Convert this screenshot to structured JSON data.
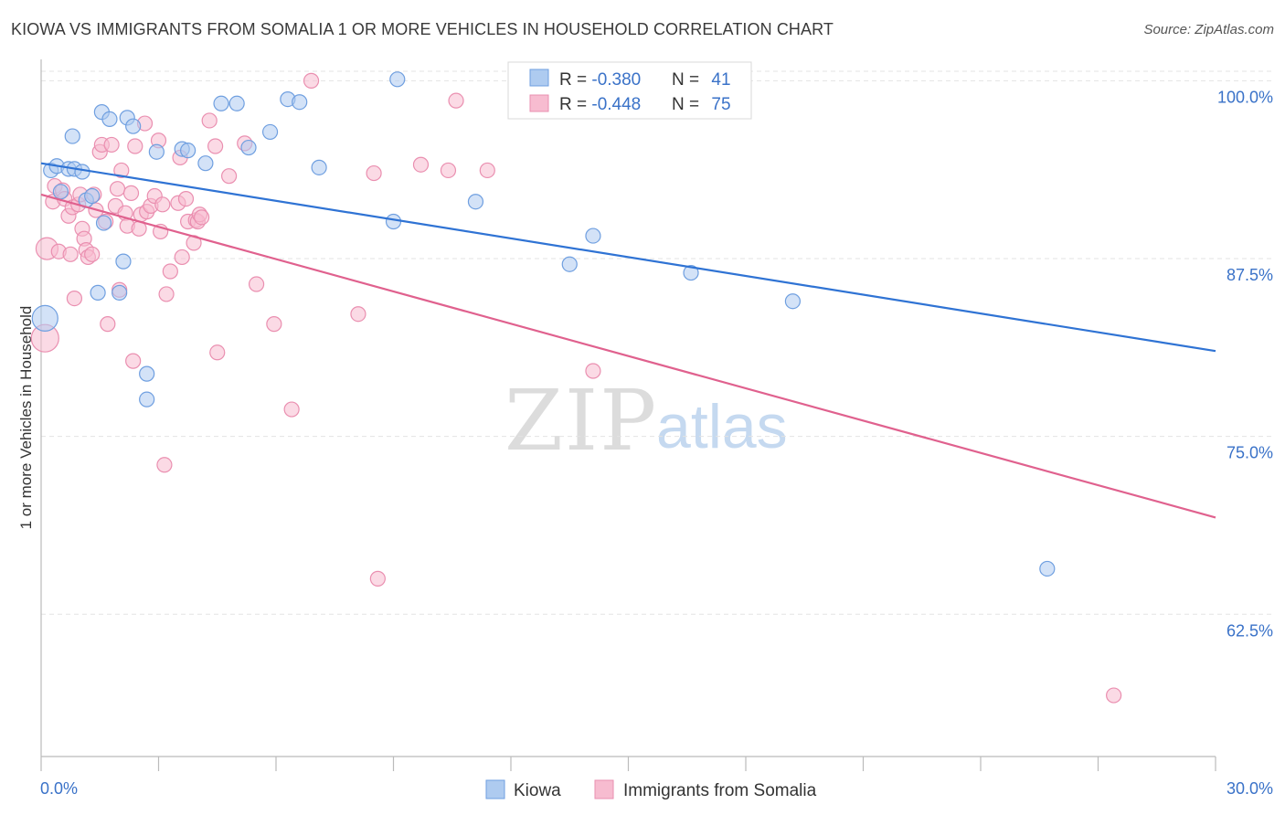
{
  "title": "KIOWA VS IMMIGRANTS FROM SOMALIA 1 OR MORE VEHICLES IN HOUSEHOLD CORRELATION CHART",
  "source": "Source: ZipAtlas.com",
  "watermark": {
    "zip": "ZIP",
    "atlas": "atlas"
  },
  "colors": {
    "kiowa_fill": "#aecbf0",
    "kiowa_stroke": "#6f9fe0",
    "kiowa_line": "#2f73d4",
    "somalia_fill": "#f7bcd0",
    "somalia_stroke": "#ea8fb0",
    "somalia_line": "#e0618e",
    "value_text": "#3a72c8",
    "grid": "#e3e3e3",
    "axis": "#bbbbbb"
  },
  "stats_box": {
    "rows": [
      {
        "r_label": "R = ",
        "r_value": "-0.380",
        "n_label": "N = ",
        "n_value": "41"
      },
      {
        "r_label": "R = ",
        "r_value": "-0.448",
        "n_label": "N = ",
        "n_value": "75"
      }
    ]
  },
  "chart_data": {
    "type": "scatter",
    "title": "KIOWA VS IMMIGRANTS FROM SOMALIA 1 OR MORE VEHICLES IN HOUSEHOLD CORRELATION CHART",
    "xlabel": "",
    "ylabel": "1 or more Vehicles in Household",
    "xlim": [
      0,
      30
    ],
    "ylim": [
      52.5,
      101.5
    ],
    "x_tick_labels": [
      "0.0%",
      "30.0%"
    ],
    "y_ticks": [
      62.5,
      75.0,
      87.5,
      100.0
    ],
    "y_tick_labels": [
      "62.5%",
      "75.0%",
      "87.5%",
      "100.0%"
    ],
    "grid": true,
    "legend_position": "bottom-center",
    "series": [
      {
        "name": "Kiowa",
        "color": "#6f9fe0",
        "regression": {
          "x": [
            0,
            30
          ],
          "y": [
            94.2,
            81.0
          ]
        },
        "points": [
          {
            "x": 0.1,
            "y": 83.3,
            "r": 14
          },
          {
            "x": 0.25,
            "y": 93.7
          },
          {
            "x": 0.4,
            "y": 94.0
          },
          {
            "x": 0.5,
            "y": 92.2
          },
          {
            "x": 0.7,
            "y": 93.8
          },
          {
            "x": 0.8,
            "y": 96.1
          },
          {
            "x": 0.85,
            "y": 93.8
          },
          {
            "x": 1.05,
            "y": 93.6
          },
          {
            "x": 1.15,
            "y": 91.6
          },
          {
            "x": 1.3,
            "y": 91.9
          },
          {
            "x": 1.45,
            "y": 85.1
          },
          {
            "x": 1.55,
            "y": 97.8
          },
          {
            "x": 1.6,
            "y": 90.0
          },
          {
            "x": 1.75,
            "y": 97.3
          },
          {
            "x": 2.0,
            "y": 85.1
          },
          {
            "x": 2.1,
            "y": 87.3
          },
          {
            "x": 2.2,
            "y": 97.4
          },
          {
            "x": 2.35,
            "y": 96.8
          },
          {
            "x": 2.7,
            "y": 79.4
          },
          {
            "x": 2.7,
            "y": 77.6
          },
          {
            "x": 2.95,
            "y": 95.0
          },
          {
            "x": 3.6,
            "y": 95.2
          },
          {
            "x": 3.75,
            "y": 95.1
          },
          {
            "x": 4.2,
            "y": 94.2
          },
          {
            "x": 4.6,
            "y": 98.4
          },
          {
            "x": 5.0,
            "y": 98.4
          },
          {
            "x": 5.3,
            "y": 95.3
          },
          {
            "x": 5.85,
            "y": 96.4
          },
          {
            "x": 6.3,
            "y": 98.7
          },
          {
            "x": 6.6,
            "y": 98.5
          },
          {
            "x": 7.1,
            "y": 93.9
          },
          {
            "x": 9.0,
            "y": 90.1
          },
          {
            "x": 9.1,
            "y": 100.1
          },
          {
            "x": 11.1,
            "y": 91.5
          },
          {
            "x": 13.5,
            "y": 87.1
          },
          {
            "x": 14.1,
            "y": 89.1
          },
          {
            "x": 16.2,
            "y": 100.2
          },
          {
            "x": 16.6,
            "y": 86.5
          },
          {
            "x": 19.2,
            "y": 84.5
          },
          {
            "x": 25.7,
            "y": 65.7
          }
        ]
      },
      {
        "name": "Immigrants from Somalia",
        "color": "#ea8fb0",
        "regression": {
          "x": [
            0,
            30
          ],
          "y": [
            92.0,
            69.3
          ]
        },
        "points": [
          {
            "x": 0.1,
            "y": 81.9,
            "r": 15
          },
          {
            "x": 0.15,
            "y": 88.2,
            "r": 12
          },
          {
            "x": 0.3,
            "y": 91.5
          },
          {
            "x": 0.35,
            "y": 92.6
          },
          {
            "x": 0.45,
            "y": 88.0
          },
          {
            "x": 0.55,
            "y": 92.3
          },
          {
            "x": 0.6,
            "y": 91.7
          },
          {
            "x": 0.7,
            "y": 90.5
          },
          {
            "x": 0.75,
            "y": 87.8
          },
          {
            "x": 0.8,
            "y": 91.1
          },
          {
            "x": 0.85,
            "y": 84.7
          },
          {
            "x": 0.95,
            "y": 91.3
          },
          {
            "x": 1.0,
            "y": 92.0
          },
          {
            "x": 1.05,
            "y": 89.6
          },
          {
            "x": 1.1,
            "y": 88.9
          },
          {
            "x": 1.15,
            "y": 88.1
          },
          {
            "x": 1.2,
            "y": 87.6
          },
          {
            "x": 1.3,
            "y": 87.8
          },
          {
            "x": 1.35,
            "y": 92.0
          },
          {
            "x": 1.4,
            "y": 90.9
          },
          {
            "x": 1.5,
            "y": 95.0
          },
          {
            "x": 1.55,
            "y": 95.5
          },
          {
            "x": 1.65,
            "y": 90.1
          },
          {
            "x": 1.7,
            "y": 82.9
          },
          {
            "x": 1.8,
            "y": 95.5
          },
          {
            "x": 1.9,
            "y": 91.2
          },
          {
            "x": 1.95,
            "y": 92.4
          },
          {
            "x": 2.0,
            "y": 85.3
          },
          {
            "x": 2.05,
            "y": 93.7
          },
          {
            "x": 2.15,
            "y": 90.7
          },
          {
            "x": 2.2,
            "y": 89.8
          },
          {
            "x": 2.3,
            "y": 92.1
          },
          {
            "x": 2.35,
            "y": 80.3
          },
          {
            "x": 2.4,
            "y": 95.4
          },
          {
            "x": 2.5,
            "y": 89.6
          },
          {
            "x": 2.55,
            "y": 90.6
          },
          {
            "x": 2.65,
            "y": 97.0
          },
          {
            "x": 2.7,
            "y": 90.8
          },
          {
            "x": 2.8,
            "y": 91.2
          },
          {
            "x": 2.9,
            "y": 91.9
          },
          {
            "x": 3.0,
            "y": 95.8
          },
          {
            "x": 3.05,
            "y": 89.4
          },
          {
            "x": 3.1,
            "y": 91.3
          },
          {
            "x": 3.15,
            "y": 73.0
          },
          {
            "x": 3.2,
            "y": 85.0
          },
          {
            "x": 3.3,
            "y": 86.6
          },
          {
            "x": 3.5,
            "y": 91.4
          },
          {
            "x": 3.55,
            "y": 94.6
          },
          {
            "x": 3.6,
            "y": 87.6
          },
          {
            "x": 3.7,
            "y": 91.7
          },
          {
            "x": 3.75,
            "y": 90.1
          },
          {
            "x": 3.9,
            "y": 88.6
          },
          {
            "x": 3.95,
            "y": 90.2
          },
          {
            "x": 4.0,
            "y": 90.1
          },
          {
            "x": 4.05,
            "y": 90.6
          },
          {
            "x": 4.1,
            "y": 90.4
          },
          {
            "x": 4.3,
            "y": 97.2
          },
          {
            "x": 4.45,
            "y": 95.4
          },
          {
            "x": 4.5,
            "y": 80.9
          },
          {
            "x": 4.8,
            "y": 93.3
          },
          {
            "x": 5.2,
            "y": 95.6
          },
          {
            "x": 5.5,
            "y": 85.7
          },
          {
            "x": 5.95,
            "y": 82.9
          },
          {
            "x": 6.4,
            "y": 76.9
          },
          {
            "x": 6.9,
            "y": 100.0
          },
          {
            "x": 8.1,
            "y": 83.6
          },
          {
            "x": 8.5,
            "y": 93.5
          },
          {
            "x": 8.6,
            "y": 65.0
          },
          {
            "x": 9.7,
            "y": 94.1
          },
          {
            "x": 10.4,
            "y": 93.7
          },
          {
            "x": 10.6,
            "y": 98.6
          },
          {
            "x": 11.4,
            "y": 93.7
          },
          {
            "x": 14.1,
            "y": 79.6
          },
          {
            "x": 27.4,
            "y": 56.8
          }
        ]
      }
    ]
  }
}
